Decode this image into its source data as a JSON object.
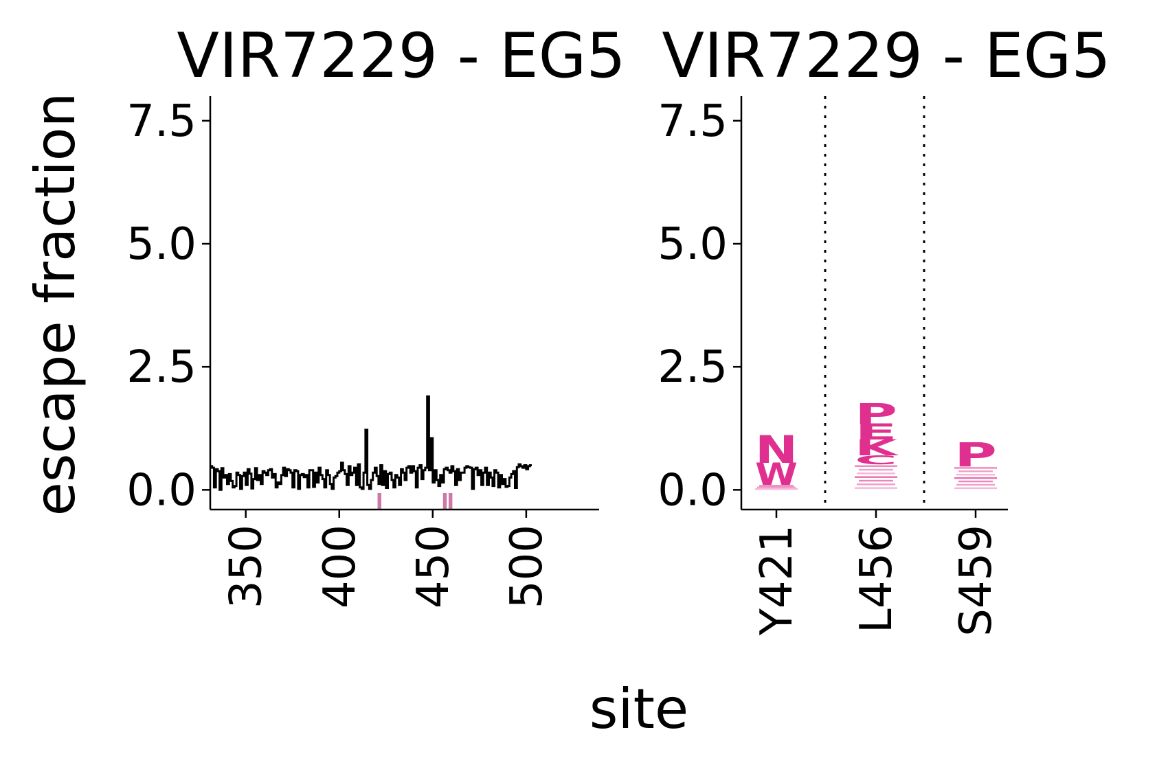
{
  "figure": {
    "ylabel": "escape fraction",
    "xlabel": "site"
  },
  "colors": {
    "line": "#000000",
    "highlight": "#cc79a7",
    "logo": "#e0308f",
    "background": "#ffffff"
  },
  "chart_data": [
    {
      "type": "line",
      "title": "VIR7229 - EG5",
      "xlabel": "site",
      "ylabel": "escape fraction",
      "xlim": [
        331,
        539
      ],
      "ylim": [
        -0.4,
        8.0
      ],
      "yticks": [
        0.0,
        2.5,
        5.0,
        7.5
      ],
      "ytick_labels": [
        "0.0",
        "2.5",
        "5.0",
        "7.5"
      ],
      "xticks": [
        350,
        400,
        450,
        500
      ],
      "xtick_labels": [
        "350",
        "400",
        "450",
        "500"
      ],
      "grid": false,
      "series": [
        {
          "x_start": 331,
          "values": [
            0.48,
            0.45,
            0.05,
            0.42,
            0.38,
            0.0,
            0.44,
            0.25,
            0.3,
            0.12,
            0.32,
            0.18,
            0.05,
            0.08,
            0.35,
            0.3,
            0.02,
            0.28,
            0.35,
            0.1,
            0.42,
            0.33,
            0.03,
            0.22,
            0.44,
            0.2,
            0.3,
            0.12,
            0.38,
            0.35,
            0.3,
            0.4,
            0.42,
            0.25,
            0.32,
            0.05,
            0.15,
            0.12,
            0.3,
            0.45,
            0.28,
            0.42,
            0.4,
            0.35,
            0.05,
            0.4,
            0.38,
            0.02,
            0.3,
            0.32,
            0.26,
            0.3,
            0.05,
            0.4,
            0.4,
            0.06,
            0.35,
            0.15,
            0.45,
            0.3,
            0.22,
            0.05,
            0.4,
            0.3,
            0.12,
            0.02,
            0.25,
            0.28,
            0.35,
            0.38,
            0.55,
            0.4,
            0.32,
            0.1,
            0.48,
            0.3,
            0.35,
            0.45,
            0.1,
            0.52,
            0.05,
            0.02,
            0.35,
            1.22,
            0.1,
            0.02,
            0.2,
            0.35,
            0.45,
            0.28,
            0.12,
            0.5,
            0.1,
            0.38,
            0.04,
            0.32,
            0.35,
            0.2,
            0.05,
            0.3,
            0.25,
            0.1,
            0.42,
            0.35,
            0.2,
            0.45,
            0.48,
            0.35,
            0.48,
            0.38,
            0.05,
            0.45,
            0.5,
            0.22,
            0.4,
            0.45,
            1.9,
            0.4,
            1.05,
            0.15,
            0.4,
            0.2,
            0.08,
            0.3,
            0.15,
            0.42,
            0.45,
            0.4,
            0.35,
            0.48,
            0.38,
            0.1,
            0.42,
            0.2,
            0.35,
            0.35,
            0.45,
            0.48,
            0.46,
            0.45,
            0.02,
            0.42,
            0.45,
            0.3,
            0.4,
            0.1,
            0.35,
            0.45,
            0.1,
            0.35,
            0.25,
            0.08,
            0.4,
            0.35,
            0.05,
            0.3,
            0.12,
            0.22,
            0.06,
            0.08,
            0.25,
            0.32,
            0.38,
            0.04,
            0.46,
            0.52,
            0.48,
            0.45,
            0.5,
            0.42,
            0.48,
            0.5
          ]
        }
      ],
      "highlight_sites": [
        421,
        456,
        459
      ]
    },
    {
      "type": "bar",
      "title": "VIR7229 - EG5",
      "xlabel": "site",
      "ylabel": "escape fraction",
      "ylim": [
        -0.4,
        8.0
      ],
      "yticks": [
        0.0,
        2.5,
        5.0,
        7.5
      ],
      "ytick_labels": [
        "0.0",
        "2.5",
        "5.0",
        "7.5"
      ],
      "categories": [
        "Y421",
        "L456",
        "S459"
      ],
      "grid": false,
      "sites": [
        {
          "site": "Y421",
          "letters": [
            {
              "aa": "N",
              "value": 0.55
            },
            {
              "aa": "W",
              "value": 0.45
            },
            {
              "aa": "",
              "value": 0.1
            }
          ]
        },
        {
          "site": "L456",
          "letters": [
            {
              "aa": "P",
              "value": 0.42
            },
            {
              "aa": "E",
              "value": 0.32
            },
            {
              "aa": "K",
              "value": 0.32
            },
            {
              "aa": "C",
              "value": 0.18
            },
            {
              "aa": "",
              "value": 0.52
            }
          ]
        },
        {
          "site": "S459",
          "letters": [
            {
              "aa": "P",
              "value": 0.48
            },
            {
              "aa": "",
              "value": 0.48
            }
          ]
        }
      ]
    }
  ]
}
